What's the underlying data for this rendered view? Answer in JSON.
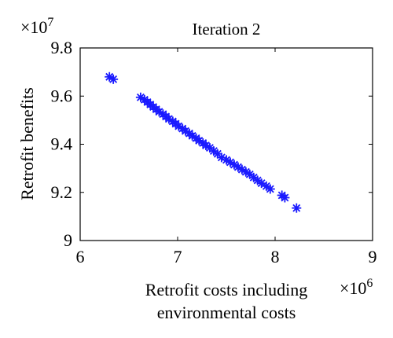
{
  "chart_data": {
    "type": "scatter",
    "title": "Iteration 2",
    "xlabel": [
      "Retrofit costs including",
      "environmental costs"
    ],
    "ylabel": "Retrofit benefits",
    "x_multiplier": {
      "base": "×10",
      "exp": "6"
    },
    "y_multiplier": {
      "base": "×10",
      "exp": "7"
    },
    "xlim": [
      6,
      9
    ],
    "ylim": [
      9,
      9.8
    ],
    "x_ticks": [
      6,
      7,
      8,
      9
    ],
    "x_tick_labels": [
      "6",
      "7",
      "8",
      "9"
    ],
    "y_ticks": [
      9,
      9.2,
      9.4,
      9.6,
      9.8
    ],
    "y_tick_labels": [
      "9",
      "9.2",
      "9.4",
      "9.6",
      "9.8"
    ],
    "marker": "asterisk",
    "marker_color": "#1a1aff",
    "grid": false,
    "series": [
      {
        "x": [
          6.3,
          6.34,
          6.62,
          6.66,
          6.69,
          6.72,
          6.75,
          6.78,
          6.81,
          6.85,
          6.88,
          6.91,
          6.95,
          6.98,
          7.01,
          7.05,
          7.08,
          7.12,
          7.15,
          7.19,
          7.22,
          7.26,
          7.29,
          7.33,
          7.37,
          7.41,
          7.45,
          7.5,
          7.54,
          7.58,
          7.62,
          7.66,
          7.7,
          7.74,
          7.78,
          7.82,
          7.86,
          7.91,
          7.95,
          8.07,
          8.1,
          8.22
        ],
        "y": [
          9.68,
          9.67,
          9.595,
          9.585,
          9.575,
          9.565,
          9.555,
          9.545,
          9.535,
          9.525,
          9.515,
          9.505,
          9.495,
          9.485,
          9.475,
          9.465,
          9.455,
          9.445,
          9.435,
          9.425,
          9.415,
          9.405,
          9.395,
          9.385,
          9.372,
          9.36,
          9.345,
          9.335,
          9.325,
          9.315,
          9.305,
          9.295,
          9.285,
          9.275,
          9.262,
          9.25,
          9.238,
          9.226,
          9.214,
          9.188,
          9.178,
          9.135
        ]
      }
    ]
  }
}
